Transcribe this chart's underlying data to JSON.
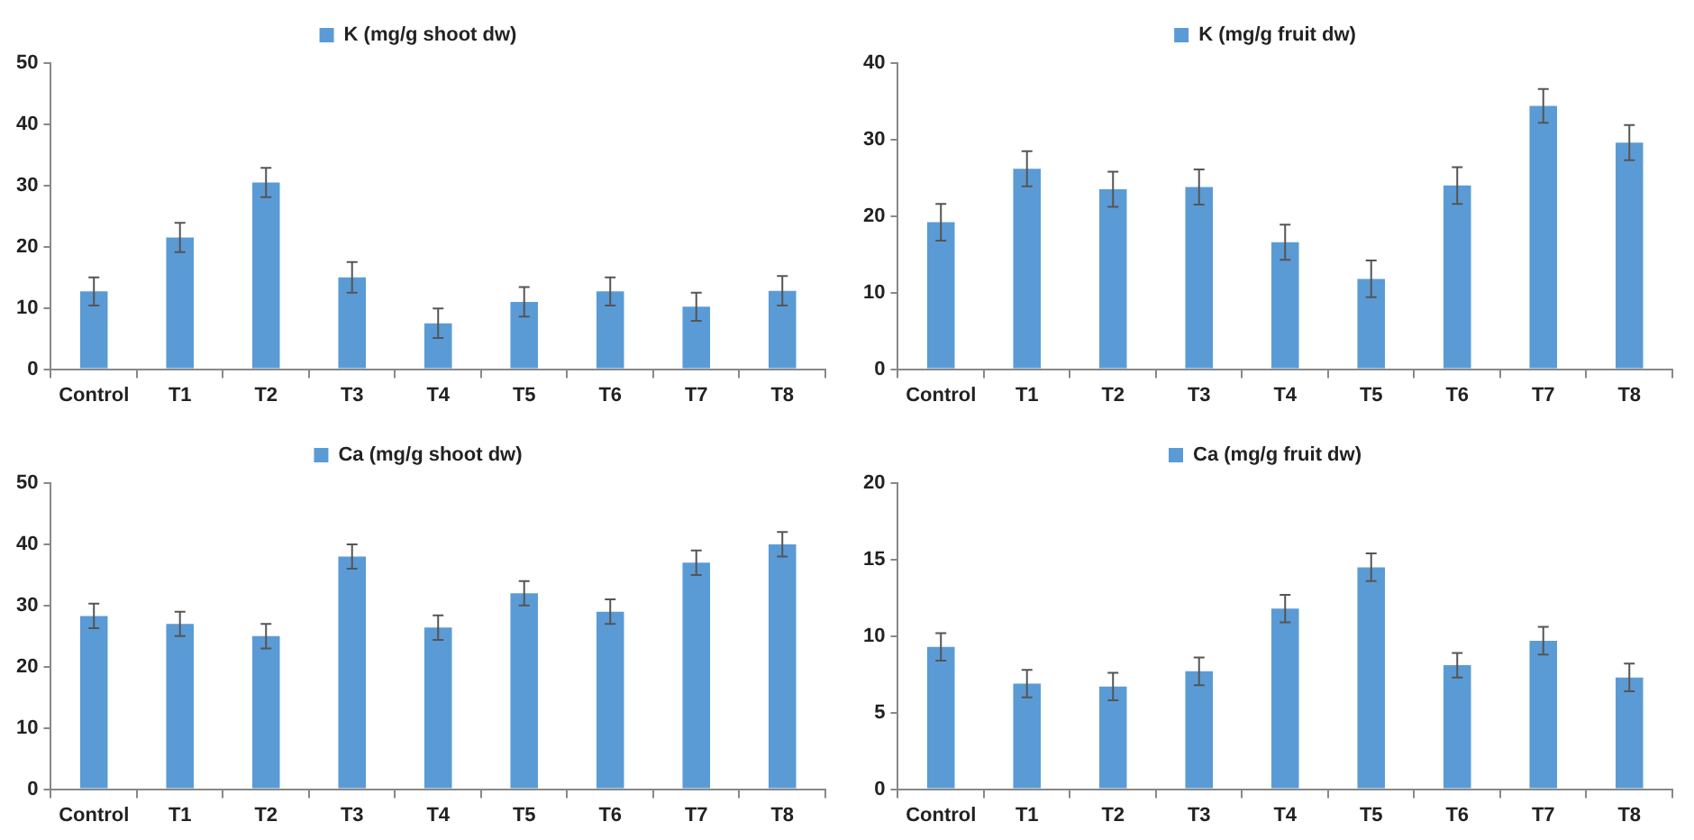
{
  "chart_data": [
    {
      "type": "bar",
      "categories": [
        "Control",
        "T1",
        "T2",
        "T3",
        "T4",
        "T5",
        "T6",
        "T7",
        "T8"
      ],
      "series": [
        {
          "name": "K (mg/g shoot dw)",
          "color": "#5b9bd5",
          "values": [
            12.7,
            21.5,
            30.5,
            15,
            7.5,
            11,
            12.7,
            10.2,
            12.8
          ],
          "errors": [
            2.3,
            2.4,
            2.4,
            2.5,
            2.4,
            2.4,
            2.3,
            2.3,
            2.4
          ]
        }
      ],
      "ylim": [
        0,
        50
      ],
      "yticks": [
        0,
        10,
        20,
        30,
        40,
        50
      ],
      "legend": "top",
      "grid": false
    },
    {
      "type": "bar",
      "categories": [
        "Control",
        "T1",
        "T2",
        "T3",
        "T4",
        "T5",
        "T6",
        "T7",
        "T8"
      ],
      "series": [
        {
          "name": "K (mg/g fruit dw)",
          "color": "#5b9bd5",
          "values": [
            19.2,
            26.2,
            23.5,
            23.8,
            16.6,
            11.8,
            24,
            34.4,
            29.6
          ],
          "errors": [
            2.4,
            2.3,
            2.3,
            2.3,
            2.3,
            2.4,
            2.4,
            2.2,
            2.3
          ]
        }
      ],
      "ylim": [
        0,
        40
      ],
      "yticks": [
        0,
        10,
        20,
        30,
        40
      ],
      "legend": "top",
      "grid": false
    },
    {
      "type": "bar",
      "categories": [
        "Control",
        "T1",
        "T2",
        "T3",
        "T4",
        "T5",
        "T6",
        "T7",
        "T8"
      ],
      "series": [
        {
          "name": "Ca (mg/g shoot dw)",
          "color": "#5b9bd5",
          "values": [
            28.3,
            27,
            25,
            38,
            26.4,
            32,
            29,
            37,
            40
          ],
          "errors": [
            2,
            2,
            2,
            2,
            2,
            2,
            2,
            2,
            2
          ]
        }
      ],
      "ylim": [
        0,
        50
      ],
      "yticks": [
        0,
        10,
        20,
        30,
        40,
        50
      ],
      "legend": "top",
      "grid": false
    },
    {
      "type": "bar",
      "categories": [
        "Control",
        "T1",
        "T2",
        "T3",
        "T4",
        "T5",
        "T6",
        "T7",
        "T8"
      ],
      "series": [
        {
          "name": "Ca (mg/g fruit dw)",
          "color": "#5b9bd5",
          "values": [
            9.3,
            6.9,
            6.7,
            7.7,
            11.8,
            14.5,
            8.1,
            9.7,
            7.3
          ],
          "errors": [
            0.9,
            0.9,
            0.9,
            0.9,
            0.9,
            0.9,
            0.8,
            0.9,
            0.9
          ]
        }
      ],
      "ylim": [
        0,
        20
      ],
      "yticks": [
        0,
        5,
        10,
        15,
        20
      ],
      "legend": "top",
      "grid": false
    }
  ]
}
